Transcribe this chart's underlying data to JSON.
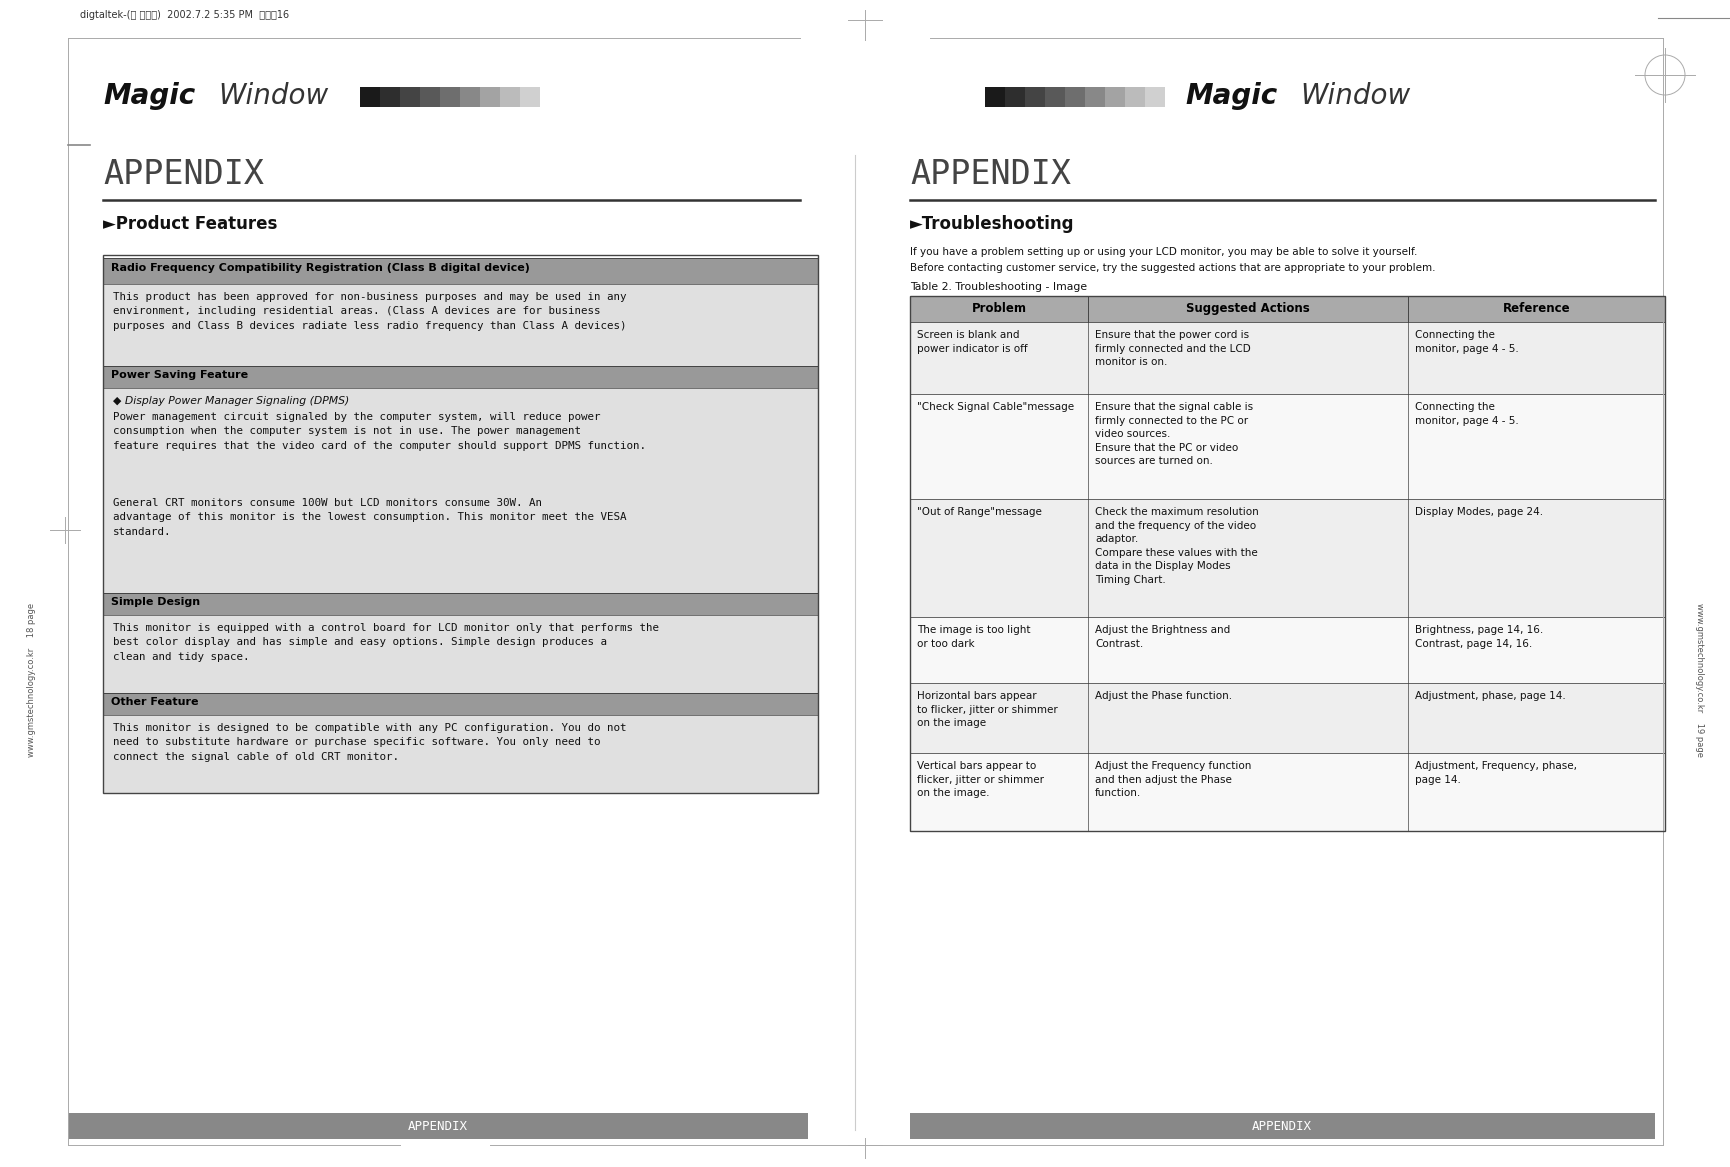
{
  "bg_color": "#ffffff",
  "header_text": "digtaltek-(영 문내지)  2002.7.2 5:35 PM  페이지16",
  "rf_section_title": "Radio Frequency Compatibility Registration (Class B digital device)",
  "rf_text": "This product has been approved for non-business purposes and may be used in any\nenvironment, including residential areas. (Class A devices are for business\npurposes and Class B devices radiate less radio frequency than Class A devices)",
  "power_section_title": "Power Saving Feature",
  "power_subsection": "◆ Display Power Manager Signaling (DPMS)",
  "power_text1": "Power management circuit signaled by the computer system, will reduce power\nconsumption when the computer system is not in use. The power management\nfeature requires that the video card of the computer should support DPMS function.",
  "power_text2": "General CRT monitors consume 100W but LCD monitors consume 30W. An\nadvantage of this monitor is the lowest consumption. This monitor meet the VESA\nstandard.",
  "simple_section_title": "Simple Design",
  "simple_text": "This monitor is equipped with a control board for LCD monitor only that performs the\nbest color display and has simple and easy options. Simple design produces a\nclean and tidy space.",
  "other_section_title": "Other Feature",
  "other_text": "This monitor is designed to be compatible with any PC configuration. You do not\nneed to substitute hardware or purchase specific software. You only need to\nconnect the signal cable of old CRT monitor.",
  "trouble_intro1": "If you have a problem setting up or using your LCD monitor, you may be able to solve it yourself.",
  "trouble_intro2": "Before contacting customer service, try the suggested actions that are appropriate to your problem.",
  "table_title": "Table 2. Troubleshooting - Image",
  "table_header": [
    "Problem",
    "Suggested Actions",
    "Reference"
  ],
  "table_rows": [
    {
      "problem": "Screen is blank and\npower indicator is off",
      "actions": "Ensure that the power cord is\nfirmly connected and the LCD\nmonitor is on.",
      "reference": "Connecting the\nmonitor, page 4 - 5."
    },
    {
      "problem": "\"Check Signal Cable\"message",
      "actions": "Ensure that the signal cable is\nfirmly connected to the PC or\nvideo sources.\nEnsure that the PC or video\nsources are turned on.",
      "reference": "Connecting the\nmonitor, page 4 - 5."
    },
    {
      "problem": "\"Out of Range\"message",
      "actions": "Check the maximum resolution\nand the frequency of the video\nadaptor.\nCompare these values with the\ndata in the Display Modes\nTiming Chart.",
      "reference": "Display Modes, page 24."
    },
    {
      "problem": "The image is too light\nor too dark",
      "actions": "Adjust the Brightness and\nContrast.",
      "reference": "Brightness, page 14, 16.\nContrast, page 14, 16."
    },
    {
      "problem": "Horizontal bars appear\nto flicker, jitter or shimmer\non the image",
      "actions": "Adjust the Phase function.",
      "reference": "Adjustment, phase, page 14."
    },
    {
      "problem": "Vertical bars appear to\nflicker, jitter or shimmer\non the image.",
      "actions": "Adjust the Frequency function\nand then adjust the Phase\nfunction.",
      "reference": "Adjustment, Frequency, phase,\npage 14."
    }
  ],
  "footer_left": "APPENDIX",
  "footer_right": "APPENDIX",
  "footer_url_left": "www.gmstechnology.co.kr    18 page",
  "footer_url_right": "www.gmstechnology.co.kr    19 page",
  "color_blocks": [
    "#1a1a1a",
    "#2e2e2e",
    "#444444",
    "#595959",
    "#6e6e6e",
    "#888888",
    "#a3a3a3",
    "#bbbbbb",
    "#d0d0d0"
  ],
  "section_header_bg": "#999999",
  "content_bg": "#e0e0e0",
  "outer_box_bg": "#cccccc",
  "table_header_bg": "#aaaaaa",
  "row_bg_odd": "#eeeeee",
  "row_bg_even": "#f8f8f8",
  "footer_bar_bg": "#888888",
  "appendix_color": "#444444",
  "border_color": "#444444",
  "line_color": "#555555"
}
